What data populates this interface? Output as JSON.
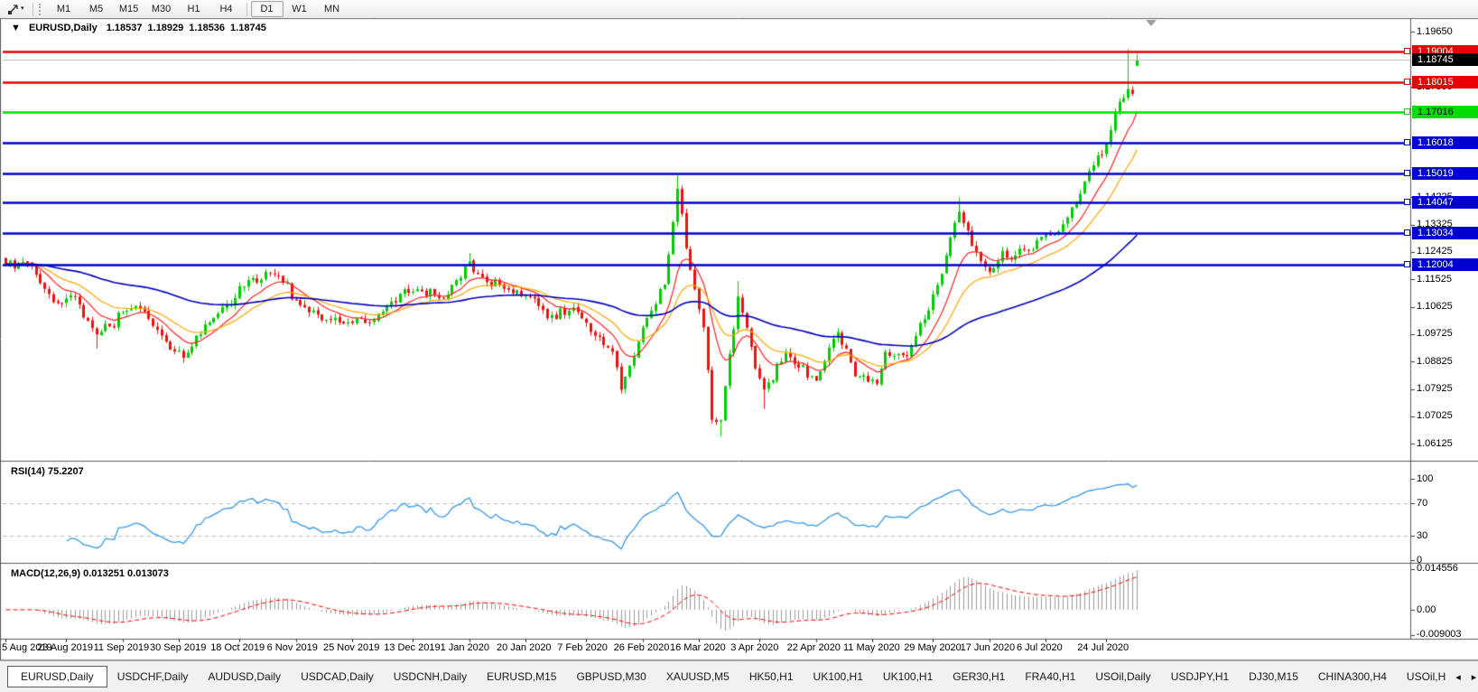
{
  "toolbar": {
    "timeframes": [
      "M1",
      "M5",
      "M15",
      "M30",
      "H1",
      "H4",
      "D1",
      "W1",
      "MN"
    ],
    "active_timeframe": "D1",
    "separator_after": "H4",
    "tool_caret_icon": "▾"
  },
  "chart_title": {
    "collapse_icon": "▼",
    "symbol": "EURUSD,Daily",
    "open": "1.18537",
    "high": "1.18929",
    "low": "1.18536",
    "close": "1.18745"
  },
  "chart_data": {
    "type": "candlestick",
    "symbol": "EURUSD",
    "period": "Daily",
    "bars_count": 262,
    "current_bar": {
      "open": 1.18537,
      "high": 1.18929,
      "low": 1.18536,
      "close": 1.18745
    },
    "y_axis_ticks": [
      "1.19650",
      "1.17850",
      "1.14225",
      "1.13325",
      "1.12425",
      "1.11525",
      "1.10625",
      "1.09725",
      "1.08825",
      "1.07925",
      "1.07025",
      "1.06125"
    ],
    "x_axis_labels": [
      {
        "label": "5 Aug 2019",
        "bar": 0
      },
      {
        "label": "23 Aug 2019",
        "bar": 14
      },
      {
        "label": "11 Sep 2019",
        "bar": 27
      },
      {
        "label": "30 Sep 2019",
        "bar": 40
      },
      {
        "label": "18 Oct 2019",
        "bar": 54
      },
      {
        "label": "6 Nov 2019",
        "bar": 67
      },
      {
        "label": "25 Nov 2019",
        "bar": 80
      },
      {
        "label": "13 Dec 2019",
        "bar": 94
      },
      {
        "label": "1 Jan 2020",
        "bar": 107
      },
      {
        "label": "20 Jan 2020",
        "bar": 120
      },
      {
        "label": "7 Feb 2020",
        "bar": 134
      },
      {
        "label": "26 Feb 2020",
        "bar": 147
      },
      {
        "label": "16 Mar 2020",
        "bar": 160
      },
      {
        "label": "3 Apr 2020",
        "bar": 174
      },
      {
        "label": "22 Apr 2020",
        "bar": 187
      },
      {
        "label": "11 May 2020",
        "bar": 200
      },
      {
        "label": "29 May 2020",
        "bar": 214
      },
      {
        "label": "17 Jun 2020",
        "bar": 227
      },
      {
        "label": "6 Jul 2020",
        "bar": 240
      },
      {
        "label": "24 Jul 2020",
        "bar": 254
      }
    ],
    "horizontal_levels": [
      {
        "label": "1.19004",
        "price": 1.19004,
        "color": "#e80000",
        "text_color": "#ffffff"
      },
      {
        "label": "1.18015",
        "price": 1.18015,
        "color": "#e80000",
        "text_color": "#ffffff"
      },
      {
        "label": "1.17016",
        "price": 1.17016,
        "color": "#00dc00",
        "text_color": "#000000"
      },
      {
        "label": "1.16018",
        "price": 1.16018,
        "color": "#0000d2",
        "text_color": "#ffffff"
      },
      {
        "label": "1.15019",
        "price": 1.15019,
        "color": "#0000d2",
        "text_color": "#ffffff"
      },
      {
        "label": "1.14047",
        "price": 1.14047,
        "color": "#0000d2",
        "text_color": "#ffffff"
      },
      {
        "label": "1.13034",
        "price": 1.13034,
        "color": "#0000d2",
        "text_color": "#ffffff"
      },
      {
        "label": "1.12004",
        "price": 1.12004,
        "color": "#0000d2",
        "text_color": "#ffffff"
      }
    ],
    "current_price_line": {
      "label": "1.18745",
      "price": 1.18745,
      "line_color": "#bdbdbd",
      "tag_color": "#000000",
      "text_color": "#ffffff"
    },
    "price_path_anchors": [
      [
        0,
        1.1203
      ],
      [
        4,
        1.121
      ],
      [
        7,
        1.1168
      ],
      [
        11,
        1.1078
      ],
      [
        16,
        1.1095
      ],
      [
        21,
        1.0972,
        null,
        1.0926
      ],
      [
        30,
        1.1065
      ],
      [
        34,
        1.1
      ],
      [
        41,
        1.0895,
        null,
        1.0879
      ],
      [
        49,
        1.104
      ],
      [
        56,
        1.115
      ],
      [
        63,
        1.1165
      ],
      [
        68,
        1.1068
      ],
      [
        74,
        1.102
      ],
      [
        79,
        1.1012
      ],
      [
        85,
        1.102
      ],
      [
        89,
        1.108
      ],
      [
        95,
        1.112
      ],
      [
        101,
        1.109
      ],
      [
        107,
        1.1212,
        1.1239
      ],
      [
        109,
        1.117
      ],
      [
        115,
        1.1122
      ],
      [
        121,
        1.1095
      ],
      [
        125,
        1.1025
      ],
      [
        131,
        1.106
      ],
      [
        135,
        1.098
      ],
      [
        140,
        1.0915
      ],
      [
        142,
        1.079,
        null,
        1.0778
      ],
      [
        148,
        1.1026
      ],
      [
        152,
        1.1135
      ],
      [
        155,
        1.145,
        1.1495
      ],
      [
        158,
        1.1184
      ],
      [
        161,
        1.0995
      ],
      [
        163,
        1.0692
      ],
      [
        165,
        1.069,
        null,
        1.0636
      ],
      [
        169,
        1.1096,
        1.1147
      ],
      [
        173,
        1.086
      ],
      [
        175,
        1.0791,
        null,
        1.0727
      ],
      [
        180,
        1.091
      ],
      [
        187,
        1.082
      ],
      [
        192,
        1.098
      ],
      [
        196,
        1.0834
      ],
      [
        201,
        1.081
      ],
      [
        203,
        1.0915
      ],
      [
        208,
        1.09
      ],
      [
        215,
        1.1134
      ],
      [
        220,
        1.1375,
        1.1422
      ],
      [
        225,
        1.1213
      ],
      [
        227,
        1.1177
      ],
      [
        230,
        1.1246
      ],
      [
        232,
        1.1218
      ],
      [
        235,
        1.125
      ],
      [
        242,
        1.13
      ],
      [
        247,
        1.14
      ],
      [
        251,
        1.1527
      ],
      [
        254,
        1.1598
      ],
      [
        256,
        1.17
      ],
      [
        258,
        1.1748
      ],
      [
        259,
        1.1778,
        1.1908
      ],
      [
        260,
        1.1762
      ],
      [
        261,
        1.18745,
        1.18929,
        1.18536
      ]
    ],
    "candle_up_color": "#00cc00",
    "candle_down_color": "#ee1111",
    "moving_averages": [
      {
        "estimated_period": 10,
        "color": "#ff2222"
      },
      {
        "estimated_period": 21,
        "color": "#ffa500"
      },
      {
        "estimated_period": 75,
        "color": "#0000bb"
      }
    ],
    "rsi": {
      "label": "RSI(14)",
      "value": "75.2207",
      "period": 14,
      "levels": [
        70,
        30
      ],
      "axis_ticks": [
        "100",
        "70",
        "30",
        "0"
      ],
      "range": [
        0,
        100
      ],
      "line_color": "#3798e8",
      "level_line_style": "dashed"
    },
    "macd": {
      "label": "MACD(12,26,9)",
      "values_text": "0.013251 0.013073",
      "fast": 12,
      "slow": 26,
      "signal": 9,
      "axis_ticks": [
        "0.014556",
        "0.00",
        "-0.009003"
      ],
      "histogram_color": "#9a9a9a",
      "signal_color": "#ff0000",
      "signal_line_style": "dashed"
    }
  },
  "tabs": {
    "items": [
      "EURUSD,Daily",
      "USDCHF,Daily",
      "AUDUSD,Daily",
      "USDCAD,Daily",
      "USDCNH,Daily",
      "EURUSD,M15",
      "GBPUSD,M30",
      "XAUUSD,M5",
      "HK50,H1",
      "UK100,H1",
      "UK100,H1",
      "GER30,H1",
      "FRA40,H1",
      "USOil,Daily",
      "USDJPY,H1",
      "DJ30,M15",
      "CHINA300,H4",
      "USOil,H"
    ],
    "active_index": 0,
    "scroll_left_icon": "◂",
    "scroll_right_icon": "▸"
  }
}
